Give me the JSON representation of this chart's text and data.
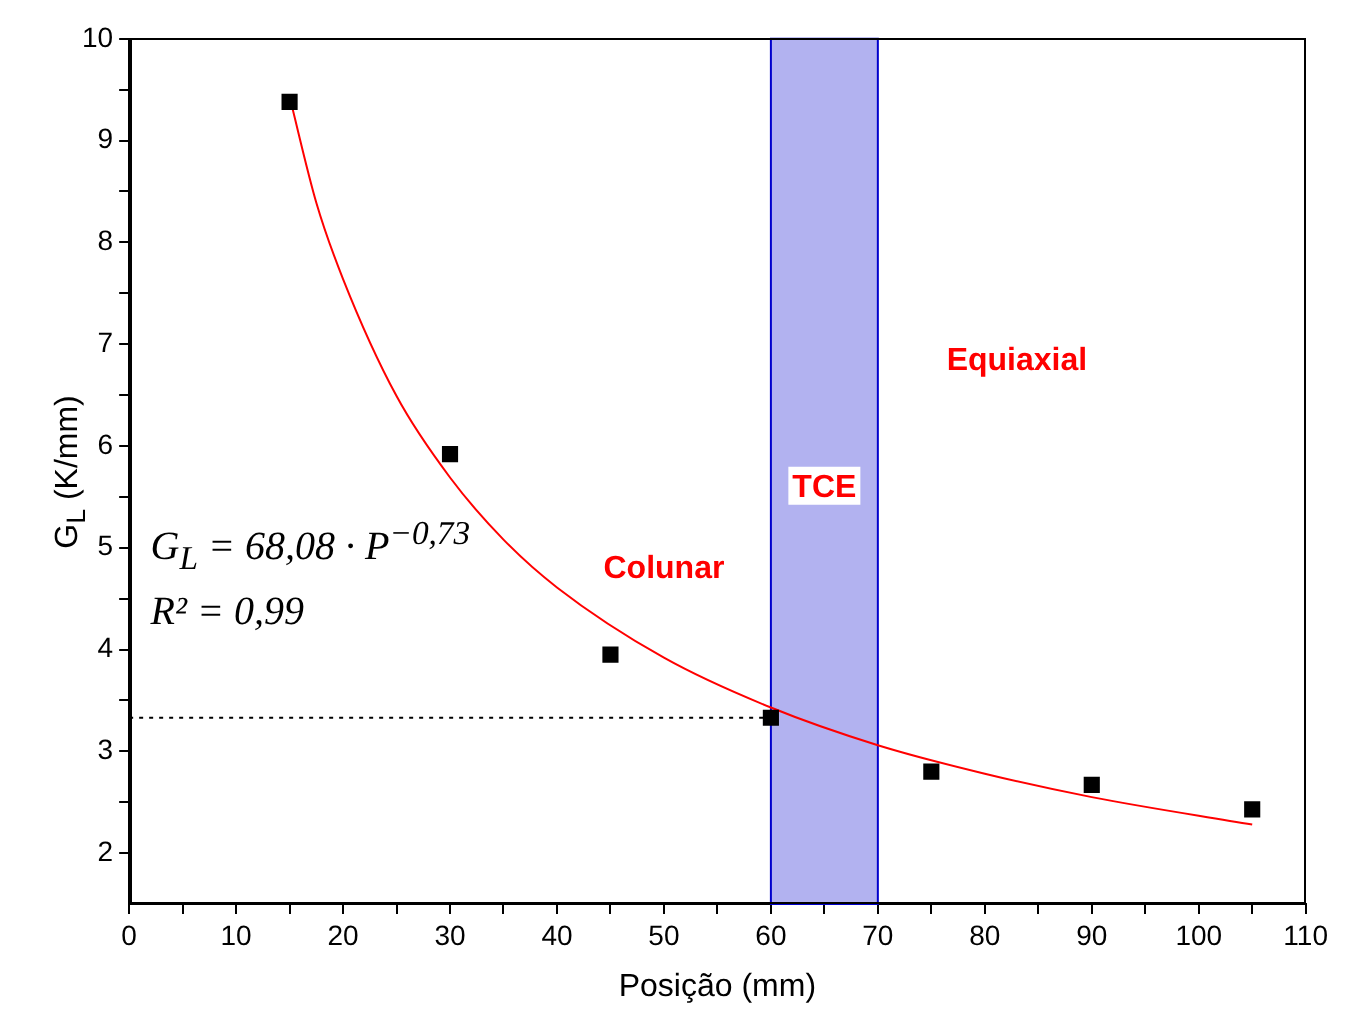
{
  "chart_data": {
    "type": "scatter",
    "xlabel": "Posição (mm)",
    "ylabel": "G$_{L}$  (K/mm)",
    "series": [
      {
        "type": "scatter",
        "color": "#000000",
        "marker": "square",
        "x": [
          15,
          30,
          45,
          60,
          75,
          90,
          105
        ],
        "values": [
          9.38,
          5.92,
          3.95,
          3.33,
          2.8,
          2.67,
          2.43
        ]
      },
      {
        "type": "line",
        "color": "#ff0000",
        "marker": "none",
        "x": [
          15,
          17.5,
          20,
          25,
          30,
          35,
          40,
          50,
          60,
          70,
          80,
          90,
          105
        ],
        "values": [
          9.43,
          8.39,
          7.64,
          6.49,
          5.69,
          5.08,
          4.61,
          3.92,
          3.43,
          3.06,
          2.78,
          2.55,
          2.28
        ]
      }
    ],
    "xlim": [
      0,
      110
    ],
    "ylim": [
      1.5,
      10
    ],
    "xticks": [
      0,
      {
        "value": 5,
        "label": null
      },
      10,
      {
        "value": 15,
        "label": null
      },
      20,
      {
        "value": 25,
        "label": null
      },
      30,
      {
        "value": 35,
        "label": null
      },
      40,
      {
        "value": 45,
        "label": null
      },
      50,
      {
        "value": 55,
        "label": null
      },
      60,
      {
        "value": 65,
        "label": null
      },
      70,
      {
        "value": 75,
        "label": null
      },
      80,
      {
        "value": 85,
        "label": null
      },
      90,
      {
        "value": 95,
        "label": null
      },
      100,
      {
        "value": 105,
        "label": null
      },
      110
    ],
    "yticks": [
      2,
      {
        "value": 2.5,
        "label": null
      },
      3,
      {
        "value": 3.5,
        "label": null
      },
      4,
      {
        "value": 4.5,
        "label": null
      },
      5,
      {
        "value": 5.5,
        "label": null
      },
      6,
      {
        "value": 6.5,
        "label": null
      },
      7,
      {
        "value": 7.5,
        "label": null
      },
      8,
      {
        "value": 8.5,
        "label": null
      },
      9,
      {
        "value": 9.5,
        "label": null
      },
      10
    ],
    "bands": [
      {
        "axis": "x",
        "from": 60,
        "to": 70,
        "label": "TCE",
        "color": "#0000cc"
      }
    ],
    "ref_lines": [
      {
        "axis": "y",
        "value": 3.33,
        "line_style": "dotted",
        "color": "#000000"
      }
    ],
    "annotations": [
      "Colunar",
      "Equiaxial",
      "G$_{L}$ = 68,08 · P$^{−0,73}$",
      "R² = 0,99"
    ],
    "grid": false,
    "legend": false
  }
}
